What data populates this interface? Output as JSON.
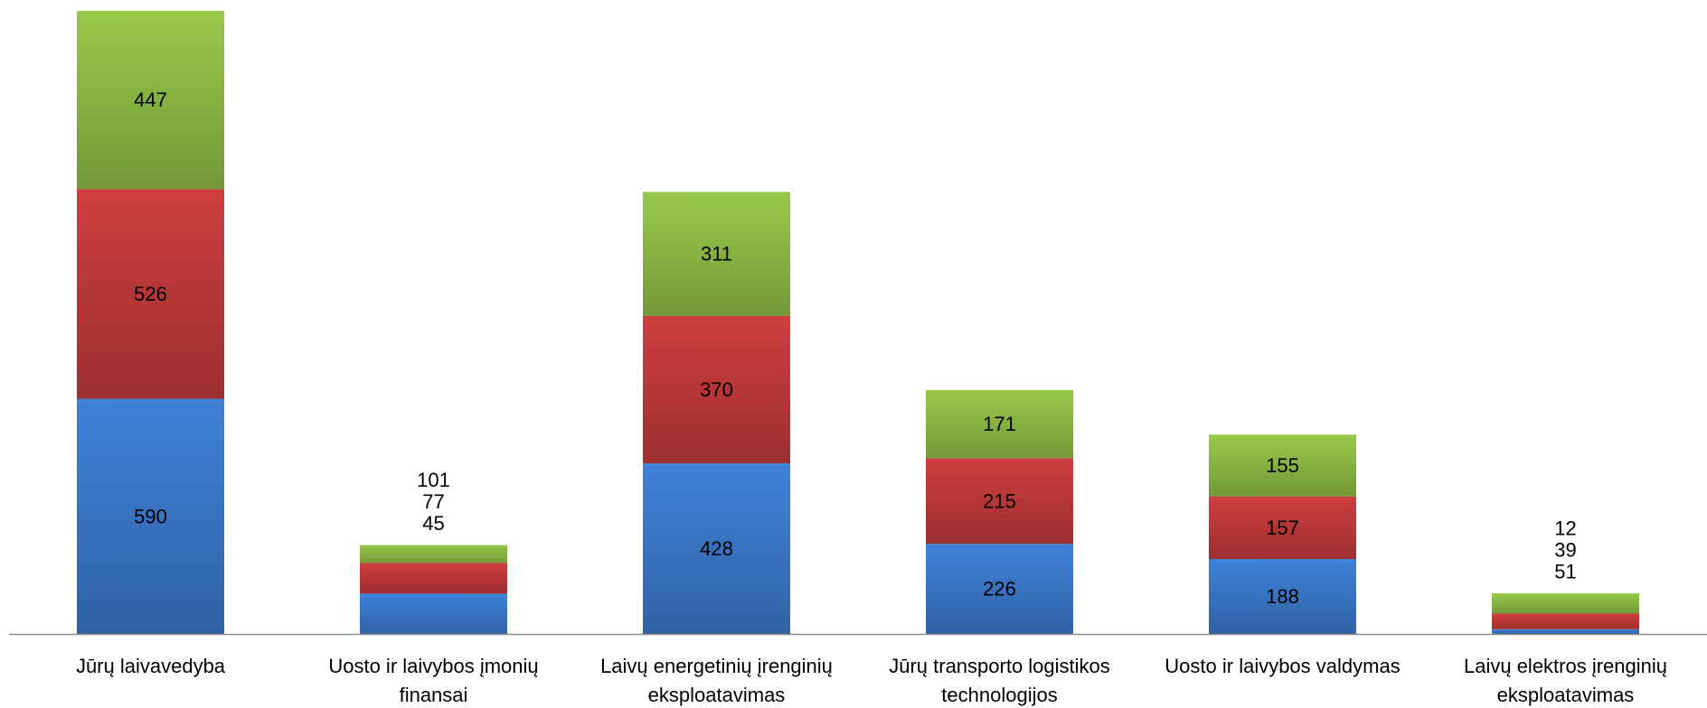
{
  "chart_data": {
    "type": "bar",
    "stacked": true,
    "categories": [
      [
        "Jūrų laivavedyba"
      ],
      [
        "Uosto ir laivybos įmonių",
        "finansai"
      ],
      [
        "Laivų energetinių įrenginių",
        "eksploatavimas"
      ],
      [
        "Jūrų transporto logistikos",
        "technologijos"
      ],
      [
        "Uosto ir laivybos valdymas"
      ],
      [
        "Laivų elektros įrenginių",
        "eksploatavimas"
      ]
    ],
    "series": [
      {
        "values": [
          590,
          101,
          428,
          226,
          188,
          12
        ],
        "color": "#3a78c9"
      },
      {
        "values": [
          526,
          77,
          370,
          215,
          157,
          39
        ],
        "color": "#c0393a"
      },
      {
        "values": [
          447,
          45,
          311,
          171,
          155,
          51
        ],
        "color": "#8cba44"
      }
    ],
    "title": "",
    "xlabel": "",
    "ylabel": "",
    "ylim": [
      0,
      1563
    ],
    "grid": false,
    "legend": "none",
    "data_labels": true
  }
}
